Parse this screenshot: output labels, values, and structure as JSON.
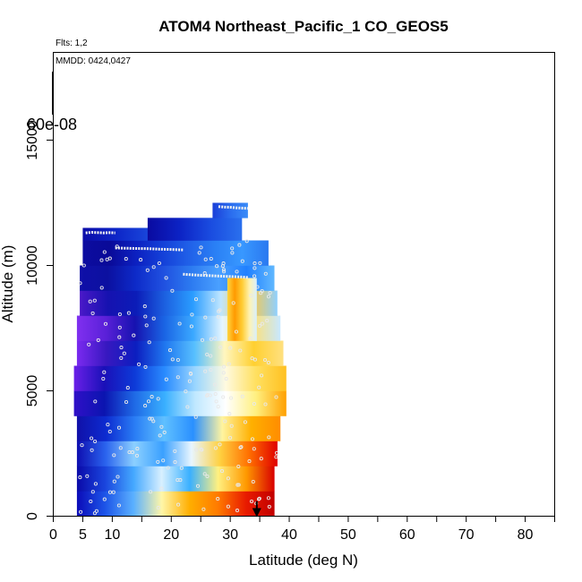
{
  "chart_data": {
    "type": "heatmap",
    "title": "ATOM4 Northeast_Pacific_1 CO_GEOS5",
    "flights_label": "Flts: 1,2",
    "dates_label": "MMDD: 0424,0427",
    "xlabel": "Latitude (deg N)",
    "ylabel": "Altitude (m)",
    "xlim": [
      0,
      85
    ],
    "ylim": [
      0,
      18500
    ],
    "x_ticks": [
      0,
      5,
      10,
      20,
      30,
      40,
      50,
      60,
      70,
      80
    ],
    "y_ticks": [
      0,
      5000,
      10000,
      15000
    ],
    "colorbar_label": "60e-08",
    "grid": false,
    "cells": [
      {
        "lat": [
          4.0,
          37.5
        ],
        "alt": [
          0,
          1000
        ],
        "grad": [
          "#0b0bb8",
          "#1d55e8",
          "#5ab0ff",
          "#fff6a8",
          "#ffae00",
          "#ff7a00",
          "#e81a00",
          "#c20000"
        ]
      },
      {
        "lat": [
          4.0,
          37.5
        ],
        "alt": [
          1000,
          2000
        ],
        "grad": [
          "#0a0aa8",
          "#1a45de",
          "#44a8ff",
          "#d8f0ff",
          "#3ab0ff",
          "#fff080",
          "#ff9900",
          "#d80000"
        ]
      },
      {
        "lat": [
          4.0,
          38.0
        ],
        "alt": [
          2000,
          3000
        ],
        "grad": [
          "#0e0eb0",
          "#2a63ee",
          "#8cd0ff",
          "#3aa0ff",
          "#e8f6ff",
          "#ffd040",
          "#ff7000",
          "#e00000"
        ]
      },
      {
        "lat": [
          4.0,
          38.5
        ],
        "alt": [
          3000,
          4000
        ],
        "grad": [
          "#1010a8",
          "#0d2bd0",
          "#2a7ef5",
          "#60c0ff",
          "#2a90ff",
          "#fff4a0",
          "#ffb000",
          "#ff8c00"
        ]
      },
      {
        "lat": [
          3.5,
          39.5
        ],
        "alt": [
          4000,
          5000
        ],
        "grad": [
          "#3010c8",
          "#0b14b0",
          "#1f6ae6",
          "#3ab0ff",
          "#c0e8ff",
          "#ffffff",
          "#fff080",
          "#ffa000"
        ]
      },
      {
        "lat": [
          3.5,
          39.5
        ],
        "alt": [
          5000,
          6000
        ],
        "grad": [
          "#6a20e8",
          "#1a10b8",
          "#0d3ad8",
          "#2a8cff",
          "#9ad6ff",
          "#fffae0",
          "#ffe060",
          "#ffc020"
        ]
      },
      {
        "lat": [
          4.0,
          39.0
        ],
        "alt": [
          6000,
          7000
        ],
        "grad": [
          "#7a2af0",
          "#3818c0",
          "#0c1ec0",
          "#2078f0",
          "#58c0ff",
          "#fff6c0",
          "#ffd030",
          "#ffe080"
        ]
      },
      {
        "lat": [
          4.0,
          38.5
        ],
        "alt": [
          7000,
          8000
        ],
        "grad": [
          "#8030f0",
          "#5a20d8",
          "#1612b0",
          "#1a64e4",
          "#3aa8ff",
          "#e6f6ff",
          "#ffe070",
          "#c8e8ff"
        ]
      },
      {
        "lat": [
          4.5,
          38.0
        ],
        "alt": [
          8000,
          9000
        ],
        "grad": [
          "#4a18c8",
          "#1612b0",
          "#0b1cb8",
          "#1c60e0",
          "#2a9cff",
          "#bfe6ff",
          "#ffc840",
          "#90d0ff"
        ]
      },
      {
        "lat": [
          4.5,
          37.5
        ],
        "alt": [
          9000,
          10000
        ],
        "grad": [
          "#0f0fa8",
          "#0c10a0",
          "#0d2ac8",
          "#2050e0",
          "#2c7af0",
          "#4aa0ff",
          "#2080ff",
          "#60b8ff"
        ]
      },
      {
        "lat": [
          5.0,
          36.5
        ],
        "alt": [
          10000,
          11000
        ],
        "grad": [
          "#0c0ca0",
          "#0a0a98",
          "#0c20c0",
          "#1440d8",
          "#2060e8",
          "#2a80f5",
          "#3898ff",
          "#2a78f0"
        ]
      },
      {
        "lat": [
          5.0,
          16.5
        ],
        "alt": [
          11000,
          11500
        ],
        "grad": [
          "#0c0ca8",
          "#0d26c8",
          "#1a48dc"
        ]
      },
      {
        "lat": [
          16.0,
          32.0
        ],
        "alt": [
          11000,
          11900
        ],
        "grad": [
          "#0a0aa0",
          "#0c22c4",
          "#1a4ce0",
          "#2a70ee"
        ]
      },
      {
        "lat": [
          27.0,
          33.0
        ],
        "alt": [
          11900,
          12500
        ],
        "grad": [
          "#1a3ed8",
          "#2a6cee",
          "#3a8cf8"
        ]
      },
      {
        "lat": [
          29.5,
          34.5
        ],
        "alt": [
          7000,
          9500
        ],
        "grad": [
          "#ffd640",
          "#ff9a00",
          "#ffcc33",
          "#fff2b0",
          "#d8f0ff"
        ]
      }
    ],
    "sample_points_count": 220,
    "flight_tracks": [
      {
        "x": [
          5.5,
          6.5,
          7.5,
          8.5,
          9.5,
          10.5
        ],
        "y": [
          11300,
          11320,
          11310,
          11300,
          11310,
          11300
        ]
      },
      {
        "x": [
          10.5,
          12,
          14,
          16,
          18,
          20,
          22
        ],
        "y": [
          10700,
          10690,
          10680,
          10670,
          10650,
          10640,
          10620
        ]
      },
      {
        "x": [
          22,
          24,
          26,
          28,
          30,
          32,
          33
        ],
        "y": [
          9650,
          9620,
          9600,
          9580,
          9560,
          9540,
          9520
        ]
      },
      {
        "x": [
          28,
          29,
          30,
          31,
          32,
          33
        ],
        "y": [
          12350,
          12330,
          12320,
          12300,
          12290,
          12280
        ]
      }
    ],
    "arrow": {
      "lat": 34.5,
      "alt_from": 600,
      "alt_to": 0
    }
  }
}
